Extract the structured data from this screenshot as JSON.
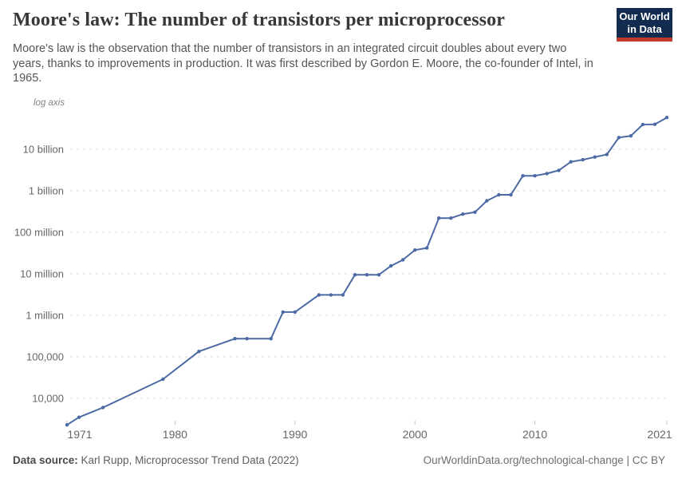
{
  "header": {
    "title": "Moore's law: The number of transistors per microprocessor",
    "subtitle": "Moore's law is the observation that the number of transistors in an integrated circuit doubles about every two years, thanks to improvements in production. It was first described by Gordon E. Moore, the co-founder of Intel, in 1965.",
    "logo": {
      "line1": "Our World",
      "line2": "in Data",
      "bg_color": "#122B4F",
      "accent_color": "#C0392B"
    }
  },
  "chart_data": {
    "type": "line",
    "title": "Moore's law: The number of transistors per microprocessor",
    "xlabel": "",
    "ylabel": "",
    "axis_note": "log axis",
    "yscale": "log",
    "grid": "dashed-horizontal",
    "legend": "none",
    "line_color": "#4C6AA3",
    "xlim": [
      1971,
      2021
    ],
    "ylim": [
      2000,
      70000000000
    ],
    "x_ticks": [
      1971,
      1980,
      1990,
      2000,
      2010,
      2021
    ],
    "y_ticks": [
      {
        "value": 10000,
        "label": "10,000"
      },
      {
        "value": 100000,
        "label": "100,000"
      },
      {
        "value": 1000000,
        "label": "1 million"
      },
      {
        "value": 10000000,
        "label": "10 million"
      },
      {
        "value": 100000000,
        "label": "100 million"
      },
      {
        "value": 1000000000,
        "label": "1 billion"
      },
      {
        "value": 10000000000,
        "label": "10 billion"
      }
    ],
    "series": [
      {
        "name": "Transistors per microprocessor",
        "points": [
          [
            1971,
            2300
          ],
          [
            1972,
            3500
          ],
          [
            1974,
            6000
          ],
          [
            1979,
            29000
          ],
          [
            1982,
            135000
          ],
          [
            1985,
            275000
          ],
          [
            1986,
            275000
          ],
          [
            1988,
            275000
          ],
          [
            1989,
            1200000
          ],
          [
            1990,
            1200000
          ],
          [
            1992,
            3100000
          ],
          [
            1993,
            3100000
          ],
          [
            1994,
            3100000
          ],
          [
            1995,
            9500000
          ],
          [
            1996,
            9500000
          ],
          [
            1997,
            9500000
          ],
          [
            1998,
            15500000
          ],
          [
            1999,
            21700000
          ],
          [
            2000,
            37500000
          ],
          [
            2001,
            42000000
          ],
          [
            2002,
            220000000
          ],
          [
            2003,
            220000000
          ],
          [
            2004,
            275000000
          ],
          [
            2005,
            305000000
          ],
          [
            2006,
            575000000
          ],
          [
            2007,
            800000000
          ],
          [
            2008,
            800000000
          ],
          [
            2009,
            2300000000
          ],
          [
            2010,
            2300000000
          ],
          [
            2011,
            2600000000
          ],
          [
            2012,
            3100000000
          ],
          [
            2013,
            5000000000
          ],
          [
            2014,
            5600000000
          ],
          [
            2015,
            6500000000
          ],
          [
            2016,
            7500000000
          ],
          [
            2017,
            19200000000
          ],
          [
            2018,
            21000000000
          ],
          [
            2019,
            39500000000
          ],
          [
            2020,
            40000000000
          ],
          [
            2021,
            58200000000
          ]
        ]
      }
    ]
  },
  "footer": {
    "source_label": "Data source:",
    "source_text": " Karl Rupp, Microprocessor Trend Data (2022)",
    "link_text": "OurWorldinData.org/technological-change | CC BY"
  }
}
